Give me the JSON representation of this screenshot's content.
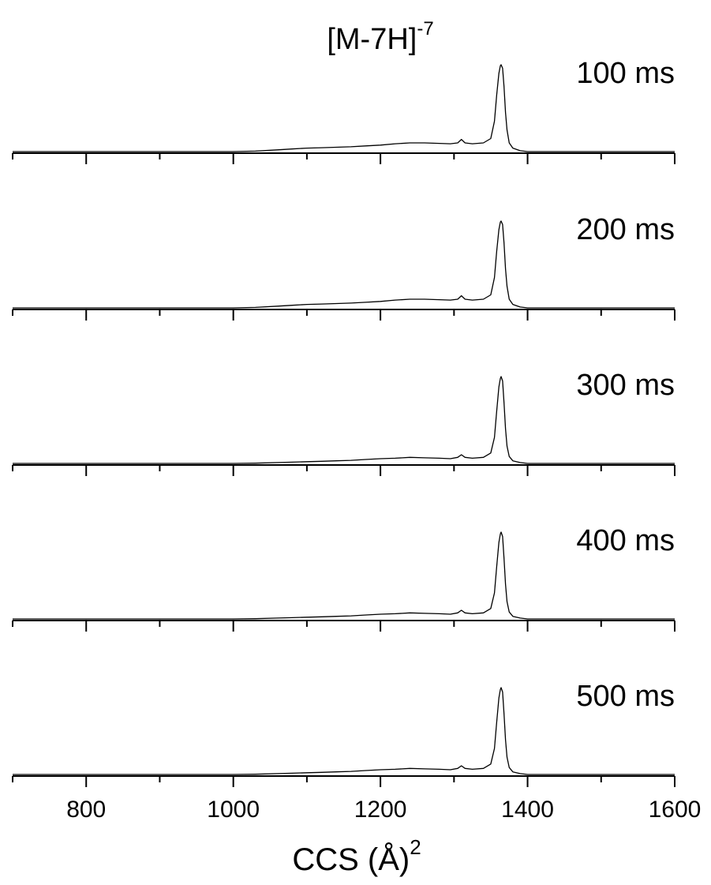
{
  "chart_data": {
    "type": "line",
    "title": "[M-7H]",
    "title_superscript": "-7",
    "xlabel": "CCS (Å)",
    "xlabel_superscript": "2",
    "xlim": [
      700,
      1600
    ],
    "x_major_ticks": [
      800,
      1000,
      1200,
      1400,
      1600
    ],
    "x_minor_ticks": [
      700,
      900,
      1100,
      1300,
      1500
    ],
    "tick_labels_shown_on": "bottom panel only",
    "grid": false,
    "legend": "none",
    "layout": "5 stacked panels sharing the x axis",
    "line_color": "#000000",
    "series": [
      {
        "name": "100 ms",
        "x": [
          700,
          1000,
          1030,
          1060,
          1080,
          1100,
          1120,
          1140,
          1160,
          1180,
          1200,
          1220,
          1240,
          1260,
          1280,
          1295,
          1305,
          1310,
          1315,
          1325,
          1340,
          1350,
          1355,
          1358,
          1361,
          1363,
          1364,
          1366,
          1368,
          1370,
          1372,
          1375,
          1380,
          1390,
          1400,
          1600
        ],
        "y": [
          0,
          0,
          0.005,
          0.02,
          0.03,
          0.04,
          0.045,
          0.05,
          0.055,
          0.065,
          0.075,
          0.09,
          0.1,
          0.1,
          0.095,
          0.09,
          0.1,
          0.14,
          0.1,
          0.09,
          0.1,
          0.15,
          0.35,
          0.65,
          0.9,
          0.99,
          1.0,
          0.96,
          0.75,
          0.45,
          0.25,
          0.1,
          0.04,
          0.01,
          0,
          0
        ]
      },
      {
        "name": "200 ms",
        "x": [
          700,
          1000,
          1030,
          1060,
          1080,
          1100,
          1120,
          1140,
          1160,
          1180,
          1200,
          1220,
          1240,
          1260,
          1280,
          1295,
          1305,
          1310,
          1315,
          1325,
          1340,
          1350,
          1355,
          1358,
          1361,
          1363,
          1364,
          1366,
          1368,
          1370,
          1372,
          1375,
          1380,
          1390,
          1400,
          1600
        ],
        "y": [
          0,
          0,
          0.005,
          0.02,
          0.03,
          0.04,
          0.045,
          0.05,
          0.055,
          0.065,
          0.075,
          0.09,
          0.1,
          0.1,
          0.095,
          0.09,
          0.1,
          0.14,
          0.1,
          0.09,
          0.1,
          0.15,
          0.35,
          0.65,
          0.9,
          0.99,
          1.0,
          0.96,
          0.75,
          0.45,
          0.25,
          0.1,
          0.04,
          0.01,
          0,
          0
        ]
      },
      {
        "name": "300 ms",
        "x": [
          700,
          1000,
          1030,
          1060,
          1080,
          1100,
          1120,
          1140,
          1160,
          1180,
          1200,
          1220,
          1240,
          1260,
          1280,
          1295,
          1305,
          1310,
          1315,
          1325,
          1340,
          1350,
          1355,
          1358,
          1361,
          1363,
          1364,
          1366,
          1368,
          1370,
          1372,
          1375,
          1380,
          1390,
          1400,
          1600
        ],
        "y": [
          0,
          0,
          0.003,
          0.01,
          0.015,
          0.02,
          0.025,
          0.03,
          0.035,
          0.045,
          0.055,
          0.06,
          0.07,
          0.065,
          0.06,
          0.055,
          0.07,
          0.1,
          0.07,
          0.06,
          0.07,
          0.12,
          0.3,
          0.6,
          0.88,
          0.98,
          1.0,
          0.95,
          0.7,
          0.4,
          0.2,
          0.08,
          0.03,
          0.01,
          0,
          0
        ]
      },
      {
        "name": "400 ms",
        "x": [
          700,
          1000,
          1030,
          1060,
          1080,
          1100,
          1120,
          1140,
          1160,
          1180,
          1200,
          1220,
          1240,
          1260,
          1280,
          1295,
          1305,
          1310,
          1315,
          1325,
          1340,
          1350,
          1355,
          1358,
          1361,
          1363,
          1364,
          1366,
          1368,
          1370,
          1372,
          1375,
          1380,
          1390,
          1400,
          1600
        ],
        "y": [
          0,
          0,
          0.003,
          0.01,
          0.015,
          0.02,
          0.025,
          0.03,
          0.035,
          0.045,
          0.055,
          0.06,
          0.07,
          0.065,
          0.06,
          0.055,
          0.07,
          0.1,
          0.07,
          0.06,
          0.07,
          0.12,
          0.3,
          0.6,
          0.88,
          0.98,
          1.0,
          0.95,
          0.7,
          0.4,
          0.2,
          0.08,
          0.03,
          0.01,
          0,
          0
        ]
      },
      {
        "name": "500 ms",
        "x": [
          700,
          1000,
          1030,
          1060,
          1080,
          1100,
          1120,
          1140,
          1160,
          1180,
          1200,
          1220,
          1240,
          1260,
          1280,
          1295,
          1305,
          1310,
          1315,
          1325,
          1340,
          1350,
          1355,
          1358,
          1361,
          1363,
          1364,
          1366,
          1368,
          1370,
          1372,
          1375,
          1380,
          1390,
          1400,
          1600
        ],
        "y": [
          0,
          0,
          0.003,
          0.01,
          0.015,
          0.02,
          0.025,
          0.03,
          0.035,
          0.045,
          0.055,
          0.06,
          0.07,
          0.065,
          0.06,
          0.055,
          0.07,
          0.1,
          0.07,
          0.06,
          0.07,
          0.12,
          0.3,
          0.6,
          0.88,
          0.98,
          1.0,
          0.95,
          0.7,
          0.4,
          0.2,
          0.08,
          0.03,
          0.01,
          0,
          0
        ]
      }
    ]
  }
}
